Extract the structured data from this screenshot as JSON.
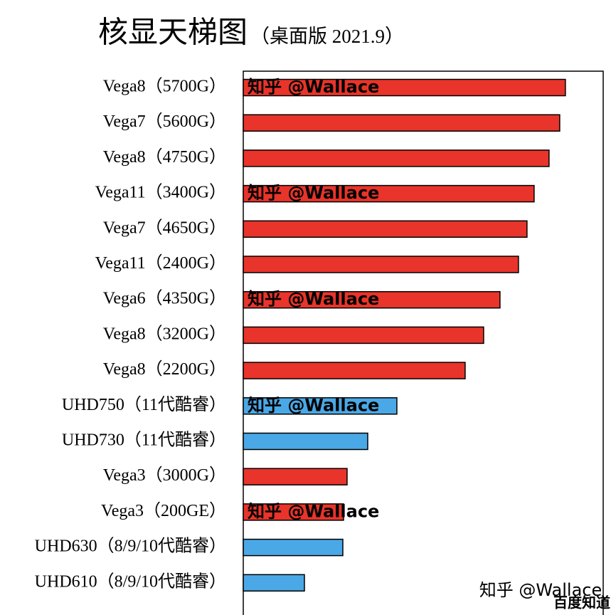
{
  "chart_data": {
    "type": "barh",
    "title": "核显天梯图",
    "subtitle": "（桌面版 2021.9）",
    "categories": [
      "Vega8（5700G）",
      "Vega7（5600G）",
      "Vega8（4750G）",
      "Vega11（3400G）",
      "Vega7（4650G）",
      "Vega11（2400G）",
      "Vega6（4350G）",
      "Vega8（3200G）",
      "Vega8（2200G）",
      "UHD750（11代酷睿）",
      "UHD730（11代酷睿）",
      "Vega3（3000G）",
      "Vega3（200GE）",
      "UHD630（8/9/10代酷睿）",
      "UHD610（8/9/10代酷睿）"
    ],
    "values": [
      453,
      445,
      430,
      409,
      399,
      387,
      361,
      338,
      312,
      216,
      175,
      146,
      141,
      140,
      86
    ],
    "colors": [
      "#e8342a",
      "#e8342a",
      "#e8342a",
      "#e8342a",
      "#e8342a",
      "#e8342a",
      "#e8342a",
      "#e8342a",
      "#e8342a",
      "#4aa8e6",
      "#4aa8e6",
      "#e8342a",
      "#e8342a",
      "#4aa8e6",
      "#4aa8e6"
    ],
    "watermark": "知乎 @Wallace",
    "footer_watermark": "知乎 @Wallace",
    "logo": "百度知道"
  }
}
